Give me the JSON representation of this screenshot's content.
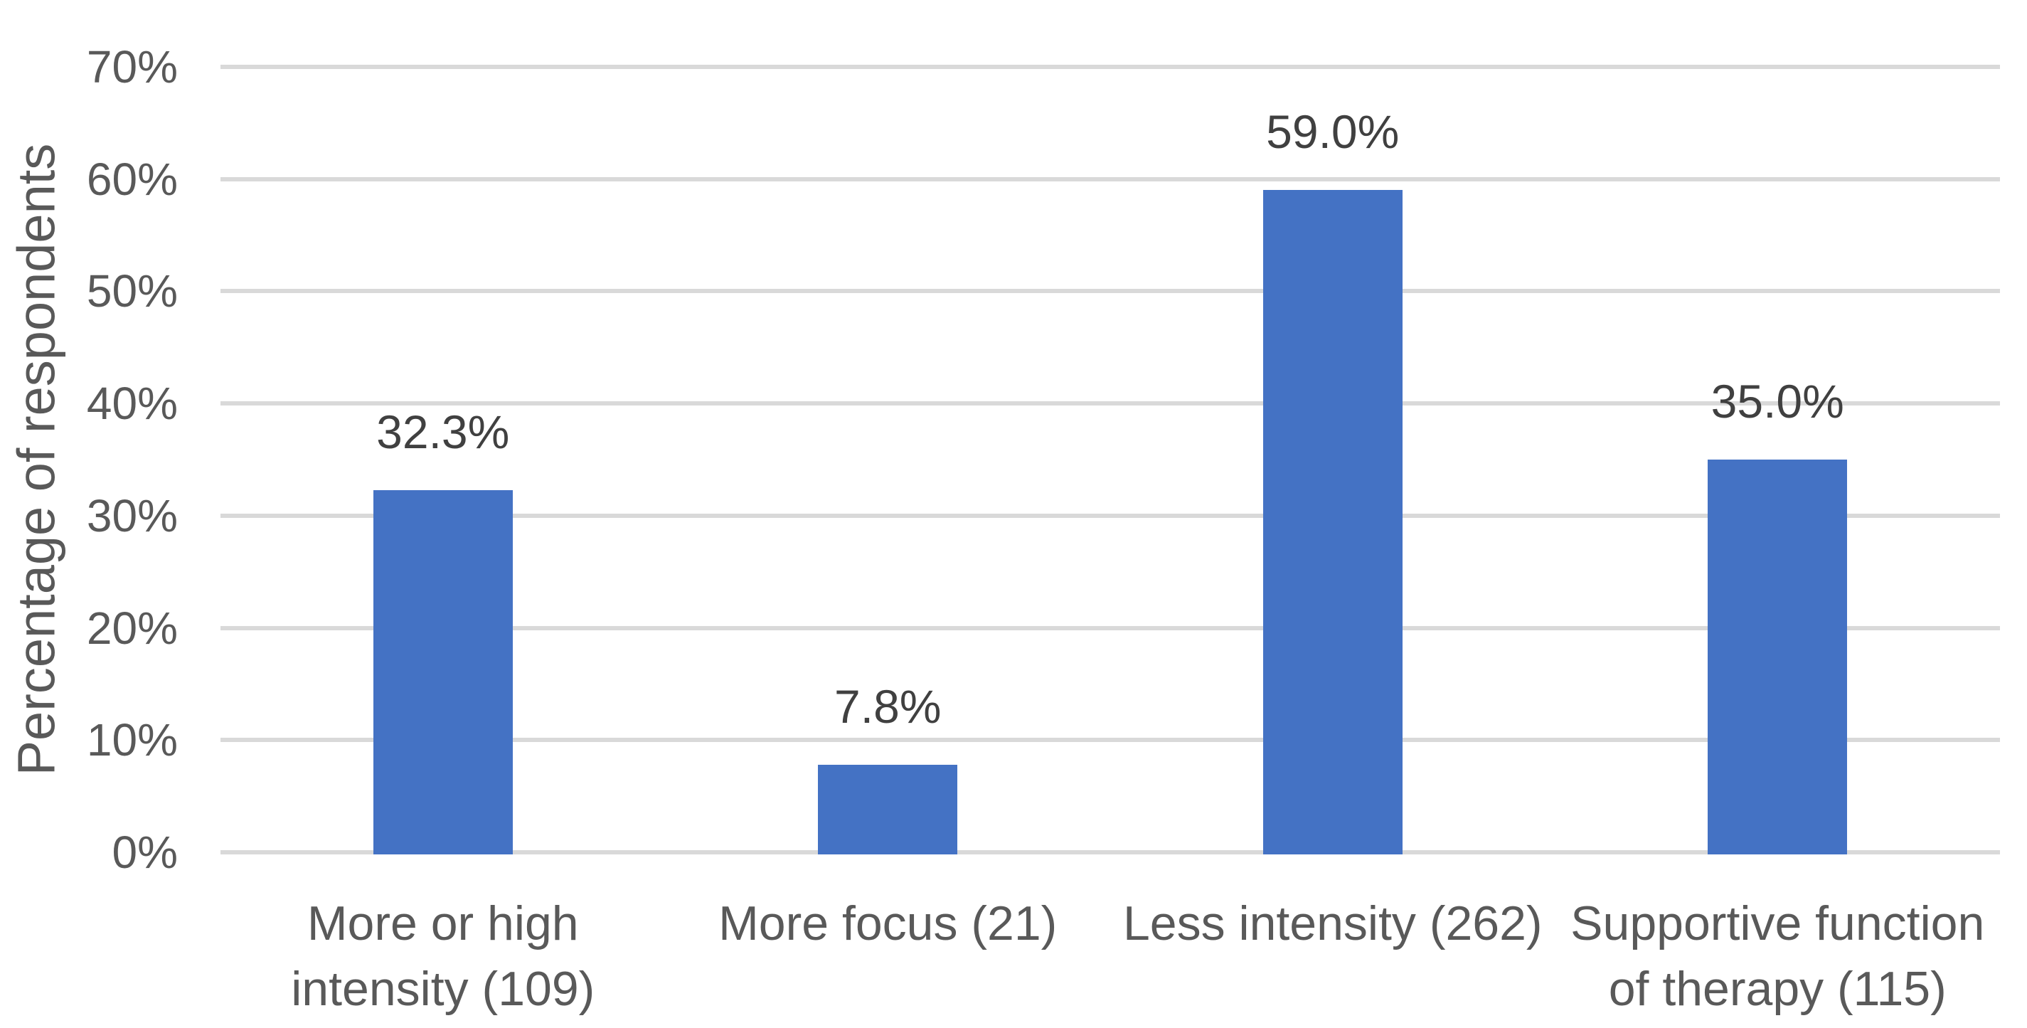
{
  "chart_data": {
    "type": "bar",
    "title": "",
    "xlabel": "",
    "ylabel": "Percentage of respondents",
    "categories": [
      "More or high intensity (109)",
      "More focus (21)",
      "Less intensity (262)",
      "Supportive function of therapy (115)"
    ],
    "values": [
      32.3,
      7.8,
      59.0,
      35.0
    ],
    "value_labels": [
      "32.3%",
      "7.8%",
      "59.0%",
      "35.0%"
    ],
    "respondent_counts": [
      109,
      21,
      262,
      115
    ],
    "ylim": [
      0,
      70
    ],
    "yticks": [
      0,
      10,
      20,
      30,
      40,
      50,
      60,
      70
    ],
    "ytick_labels": [
      "0%",
      "10%",
      "20%",
      "30%",
      "40%",
      "50%",
      "60%",
      "70%"
    ],
    "grid": true,
    "legend": "none",
    "colors": {
      "bar": "#4472C4",
      "gridline": "#D9D9D9",
      "axis_text": "#595959",
      "data_label": "#404040",
      "background": "#FFFFFF"
    }
  }
}
